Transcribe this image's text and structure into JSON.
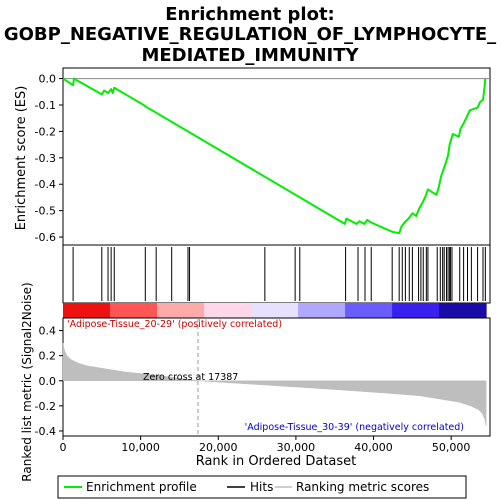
{
  "chart_data": {
    "type": "line",
    "title_lines": [
      "Enrichment plot:",
      "GOBP_NEGATIVE_REGULATION_OF_LYMPHOCYTE_",
      "MEDIATED_IMMUNITY"
    ],
    "xlabel": "Rank in Ordered Dataset",
    "ylabel_top": "Enrichment score (ES)",
    "ylabel_bottom": "Ranked list metric (Signal2Noise)",
    "xlim": [
      0,
      55000
    ],
    "x_ticks": [
      0,
      10000,
      20000,
      30000,
      40000,
      50000
    ],
    "x_tick_labels": [
      "0",
      "10,000",
      "20,000",
      "30,000",
      "40,000",
      "50,000"
    ],
    "es_ylim": [
      -0.63,
      0.04
    ],
    "es_ticks": [
      0.0,
      -0.1,
      -0.2,
      -0.3,
      -0.4,
      -0.5,
      -0.6
    ],
    "es_tick_labels": [
      "0.0",
      "-0.1",
      "-0.2",
      "-0.3",
      "-0.4",
      "-0.5",
      "-0.6"
    ],
    "metric_ylim": [
      -0.44,
      0.5
    ],
    "metric_ticks": [
      0.4,
      0.2,
      0.0,
      -0.2,
      -0.4
    ],
    "metric_tick_labels": [
      "0.4",
      "0.2",
      "0.0",
      "-0.2",
      "-0.4"
    ],
    "enrichment_profile": {
      "x": [
        0,
        1300,
        1400,
        5000,
        5300,
        5800,
        6200,
        6400,
        6600,
        10400,
        10600,
        36300,
        36500,
        37800,
        38200,
        38800,
        39200,
        39700,
        42400,
        43300,
        43600,
        44000,
        44500,
        45000,
        45500,
        45900,
        46300,
        46700,
        47000,
        48100,
        48400,
        48700,
        49000,
        49300,
        49600,
        49800,
        50000,
        50200,
        51000,
        51200,
        51600,
        52000,
        52400,
        53400,
        53700,
        54100,
        54300,
        54400
      ],
      "y": [
        0.0,
        -0.025,
        0.0,
        -0.06,
        -0.045,
        -0.055,
        -0.04,
        -0.055,
        -0.035,
        -0.1,
        -0.105,
        -0.55,
        -0.53,
        -0.55,
        -0.54,
        -0.55,
        -0.535,
        -0.545,
        -0.58,
        -0.585,
        -0.56,
        -0.545,
        -0.53,
        -0.51,
        -0.52,
        -0.49,
        -0.47,
        -0.445,
        -0.42,
        -0.44,
        -0.41,
        -0.37,
        -0.345,
        -0.32,
        -0.29,
        -0.25,
        -0.23,
        -0.21,
        -0.22,
        -0.19,
        -0.17,
        -0.145,
        -0.12,
        -0.11,
        -0.09,
        -0.08,
        -0.03,
        0.0
      ],
      "color": "#00ee00"
    },
    "hits_x": [
      1300,
      5000,
      5800,
      6200,
      6600,
      10600,
      12000,
      14000,
      16100,
      16300,
      26000,
      29900,
      30500,
      36400,
      38000,
      38900,
      39700,
      42400,
      43300,
      43700,
      44100,
      44600,
      45000,
      45800,
      46100,
      46400,
      46800,
      47000,
      48200,
      48600,
      48900,
      49100,
      49400,
      49600,
      49800,
      49900,
      50100,
      51100,
      51600,
      52100,
      52600,
      53400,
      54100,
      54400
    ],
    "hits_color": "#000000",
    "metric_curve": {
      "x": [
        0,
        200,
        500,
        1000,
        2000,
        3000,
        5000,
        8000,
        12000,
        17387,
        25000,
        35000,
        42000,
        46000,
        49000,
        51000,
        52500,
        53500,
        54000,
        54300,
        54500
      ],
      "y": [
        0.3,
        0.24,
        0.2,
        0.17,
        0.14,
        0.12,
        0.1,
        0.07,
        0.045,
        0.0,
        -0.03,
        -0.07,
        -0.1,
        -0.12,
        -0.15,
        -0.17,
        -0.2,
        -0.23,
        -0.26,
        -0.3,
        -0.36
      ],
      "color": "#bebebe"
    },
    "zero_cross_label": "Zero cross at 17387",
    "zero_cross_x": 17387,
    "positive_label": "'Adipose-Tissue_20-29' (positively correlated)",
    "negative_label": "'Adipose-Tissue_30-39' (negatively correlated)",
    "positive_label_color": "#cc0000",
    "negative_label_color": "#0000cc",
    "legend": [
      {
        "label": "Enrichment profile",
        "color": "#00ee00"
      },
      {
        "label": "Hits",
        "color": "#000000"
      },
      {
        "label": "Ranking metric scores",
        "color": "#bebebe"
      }
    ],
    "legend_position": "bottom",
    "heatmap_colors": [
      "#ee1111",
      "#ff5555",
      "#ffaaaa",
      "#ffd6ea",
      "#e8e0ff",
      "#b0a8ff",
      "#6a5cff",
      "#3a20ee",
      "#1a0aa8"
    ]
  }
}
